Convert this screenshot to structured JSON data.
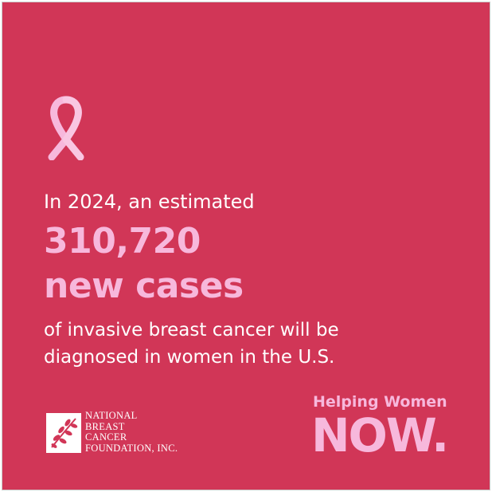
{
  "colors": {
    "background": "#d13657",
    "accent_pink": "#f7b8dc",
    "text_white": "#ffffff"
  },
  "icons": {
    "ribbon": "pink-ribbon-icon",
    "foundation_logo": "nbcf-logo"
  },
  "headline": {
    "intro": "In 2024, an estimated",
    "number": "310,720",
    "unit": "new cases",
    "line1": "of invasive breast cancer will be",
    "line2": "diagnosed in women in the U.S."
  },
  "logo": {
    "line1": "NATIONAL",
    "line2": "BREAST",
    "line3": "CANCER",
    "line4": "FOUNDATION, INC."
  },
  "tagline": {
    "top": "Helping Women",
    "bottom": "NOW."
  }
}
